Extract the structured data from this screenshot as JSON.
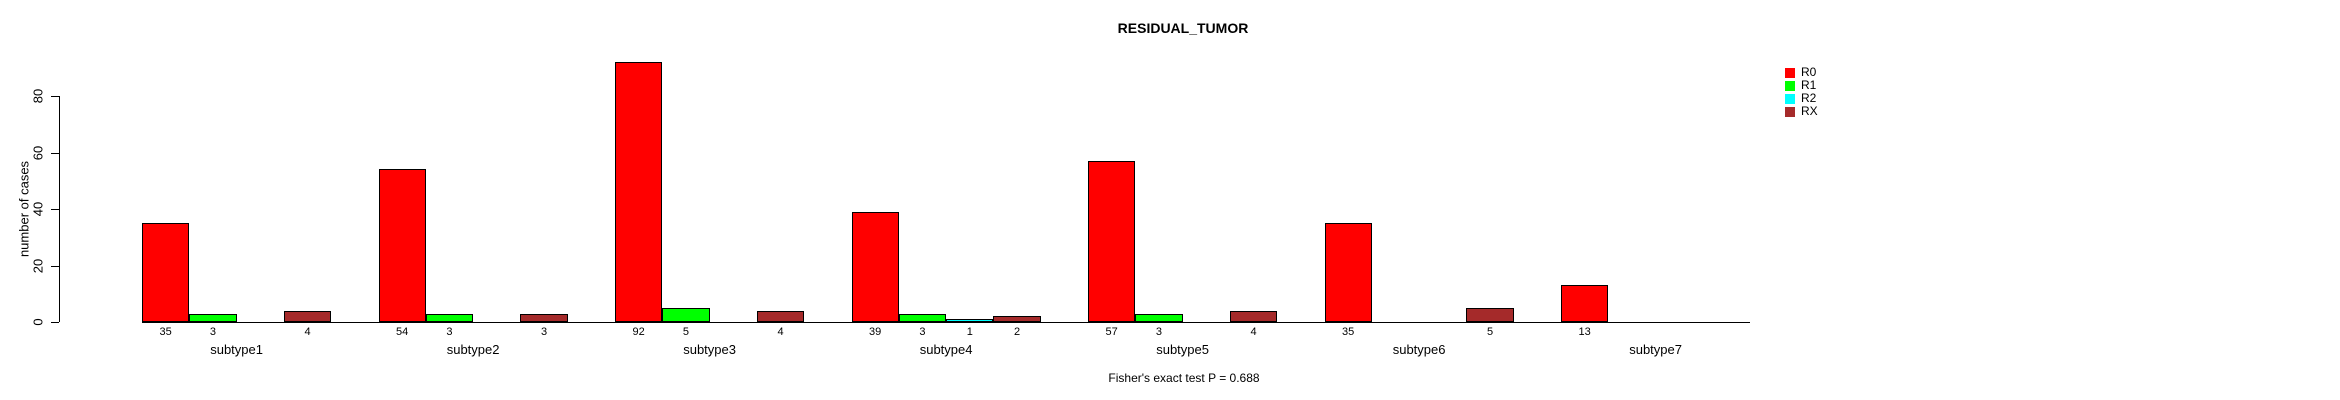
{
  "chart_data": {
    "type": "bar",
    "title": "RESIDUAL_TUMOR",
    "xlabel": "",
    "ylabel": "number of cases",
    "caption": "Fisher's exact test P = 0.688",
    "categories": [
      "subtype1",
      "subtype2",
      "subtype3",
      "subtype4",
      "subtype5",
      "subtype6",
      "subtype7"
    ],
    "series": [
      {
        "name": "R0",
        "color": "#FF0000",
        "values": [
          35,
          54,
          92,
          39,
          57,
          35,
          13
        ]
      },
      {
        "name": "R1",
        "color": "#00FF00",
        "values": [
          3,
          3,
          5,
          3,
          3,
          0,
          0
        ]
      },
      {
        "name": "R2",
        "color": "#00FFFF",
        "values": [
          0,
          0,
          0,
          1,
          0,
          0,
          0
        ]
      },
      {
        "name": "RX",
        "color": "#A52A2A",
        "values": [
          4,
          3,
          4,
          2,
          4,
          5,
          0
        ]
      }
    ],
    "yticks": [
      0,
      20,
      40,
      60,
      80
    ],
    "ylim": [
      0,
      92
    ],
    "grid": false,
    "legend_position": "top-right",
    "bar_value_labels_shown": true,
    "zero_values_hidden": true
  }
}
